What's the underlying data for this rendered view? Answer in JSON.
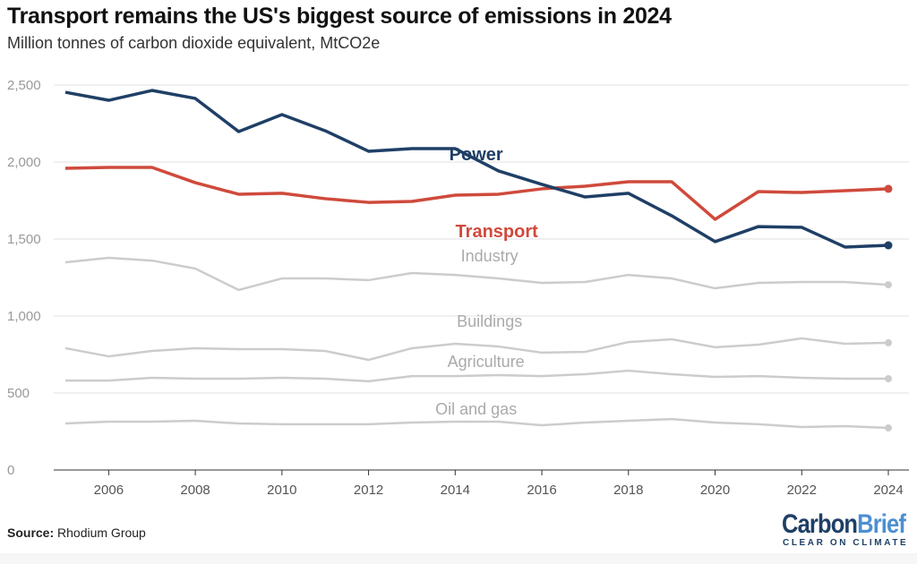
{
  "chart_data": {
    "type": "line",
    "title": "Transport remains the US's biggest source of emissions in 2024",
    "subtitle": "Million tonnes of carbon dioxide equivalent, MtCO2e",
    "x": [
      2005,
      2006,
      2007,
      2008,
      2009,
      2010,
      2011,
      2012,
      2013,
      2014,
      2015,
      2016,
      2017,
      2018,
      2019,
      2020,
      2021,
      2022,
      2023,
      2024
    ],
    "xticks": [
      "2006",
      "2008",
      "2010",
      "2012",
      "2014",
      "2016",
      "2018",
      "2020",
      "2022",
      "2024"
    ],
    "yticks": [
      "0",
      "500",
      "1,000",
      "1,500",
      "2,000",
      "2,500"
    ],
    "ylim": [
      0,
      2500
    ],
    "xlim": [
      2005,
      2024
    ],
    "grid": true,
    "series": [
      {
        "name": "Power",
        "color": "#1f3f66",
        "values": [
          2453,
          2401,
          2465,
          2413,
          2198,
          2308,
          2203,
          2070,
          2087,
          2087,
          1942,
          1855,
          1773,
          1797,
          1651,
          1483,
          1581,
          1576,
          1448,
          1459
        ]
      },
      {
        "name": "Transport",
        "color": "#cf4a3c",
        "values": [
          1959,
          1965,
          1965,
          1866,
          1791,
          1797,
          1762,
          1738,
          1744,
          1785,
          1791,
          1826,
          1843,
          1872,
          1872,
          1628,
          1808,
          1802,
          1814,
          1826
        ]
      },
      {
        "name": "Industry",
        "color": "#cccccc",
        "values": [
          1349,
          1378,
          1360,
          1308,
          1169,
          1244,
          1244,
          1233,
          1279,
          1267,
          1244,
          1215,
          1221,
          1267,
          1244,
          1180,
          1215,
          1221,
          1221,
          1203
        ]
      },
      {
        "name": "Buildings",
        "color": "#cccccc",
        "values": [
          791,
          738,
          773,
          791,
          785,
          785,
          773,
          715,
          791,
          820,
          802,
          762,
          767,
          831,
          849,
          797,
          814,
          855,
          820,
          826
        ]
      },
      {
        "name": "Agriculture",
        "color": "#cccccc",
        "values": [
          581,
          581,
          599,
          593,
          593,
          599,
          593,
          576,
          610,
          610,
          616,
          610,
          622,
          645,
          622,
          605,
          610,
          599,
          593,
          593
        ]
      },
      {
        "name": "Oil and gas",
        "color": "#cccccc",
        "values": [
          302,
          314,
          314,
          320,
          302,
          297,
          297,
          297,
          308,
          314,
          314,
          291,
          308,
          320,
          331,
          308,
          297,
          279,
          285,
          273
        ]
      }
    ]
  },
  "source_label": "Source:",
  "source_value": "Rhodium Group",
  "logo": {
    "text1": "Carbon",
    "text2": "Brief",
    "tagline": "CLEAR ON CLIMATE"
  }
}
